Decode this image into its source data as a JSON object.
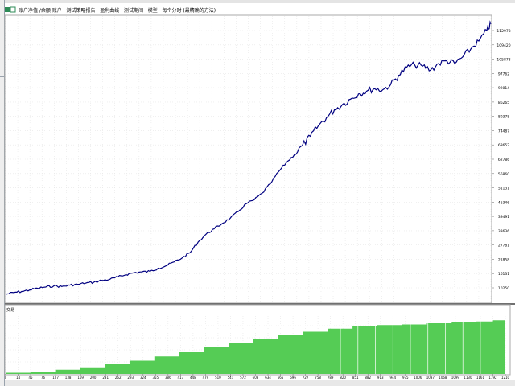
{
  "header": {
    "window_icon": "chart-window-icon",
    "title": "账户净值 /余额 账户 · 测试策略报告 · 盈利曲线 · 测试期间 · 模型 · 每个分时 (最精确的方法)"
  },
  "bottom_panel": {
    "title": "交易"
  },
  "chart_data": [
    {
      "type": "line",
      "title": "",
      "xlabel": "",
      "ylabel": "",
      "grid": true,
      "line_color": "#000080",
      "background": "#ffffff",
      "y_tick_labels": [
        "112978",
        "109420",
        "105873",
        "97762",
        "92014",
        "86265",
        "80378",
        "74487",
        "68652",
        "62786",
        "56860",
        "51131",
        "45346",
        "39491",
        "33636",
        "27781",
        "21858",
        "16131",
        "10250"
      ],
      "ylim": [
        10250,
        112978
      ],
      "xlim": [
        0,
        1210
      ],
      "series": [
        {
          "x": [
            0,
            20,
            40,
            60,
            80,
            100,
            120,
            140,
            160,
            180,
            200,
            220,
            240,
            260,
            280,
            300,
            320,
            340,
            360,
            380,
            400,
            420,
            440,
            460,
            480,
            500,
            520,
            540,
            560,
            580,
            600,
            620,
            640,
            660,
            680,
            700,
            720,
            740,
            760,
            780,
            800,
            820,
            840,
            860,
            880,
            900,
            920,
            940,
            960,
            980,
            1000,
            1020,
            1040,
            1060,
            1080,
            1100,
            1120,
            1140,
            1160,
            1180,
            1200,
            1210
          ],
          "y": [
            10250,
            10900,
            11300,
            11900,
            12500,
            13000,
            13400,
            13200,
            13700,
            14000,
            14500,
            14800,
            15500,
            15900,
            16800,
            17700,
            18400,
            18700,
            18900,
            20100,
            21000,
            22500,
            24000,
            26000,
            30000,
            33000,
            35000,
            37000,
            39000,
            41500,
            44500,
            46000,
            48500,
            52000,
            56500,
            60000,
            63000,
            66500,
            70000,
            74000,
            77000,
            80000,
            82000,
            84000,
            86000,
            87000,
            88000,
            87500,
            89500,
            93000,
            96000,
            97000,
            96500,
            95000,
            97500,
            98500,
            97500,
            100000,
            103000,
            106000,
            110000,
            112500
          ]
        }
      ]
    },
    {
      "type": "area",
      "title": "",
      "fill_color": "#55cc55",
      "x_tick_labels": [
        "0",
        "14",
        "45",
        "76",
        "107",
        "138",
        "169",
        "200",
        "231",
        "262",
        "293",
        "324",
        "355",
        "386",
        "417",
        "448",
        "479",
        "510",
        "541",
        "572",
        "603",
        "634",
        "665",
        "696",
        "727",
        "758",
        "789",
        "820",
        "851",
        "882",
        "913",
        "944",
        "975",
        "1006",
        "1037",
        "1068",
        "1099",
        "1130",
        "1161",
        "1192",
        "1210"
      ],
      "xlim": [
        0,
        1210
      ],
      "ylim": [
        0,
        100
      ],
      "series": [
        {
          "x": [
            0,
            60,
            120,
            180,
            240,
            300,
            360,
            420,
            480,
            540,
            600,
            660,
            720,
            780,
            840,
            900,
            960,
            1020,
            1080,
            1140,
            1180,
            1210
          ],
          "y": [
            2,
            4,
            7,
            11,
            16,
            22,
            29,
            36,
            44,
            52,
            58,
            64,
            70,
            75,
            79,
            81,
            82,
            84,
            86,
            87,
            89,
            92
          ]
        }
      ]
    }
  ]
}
